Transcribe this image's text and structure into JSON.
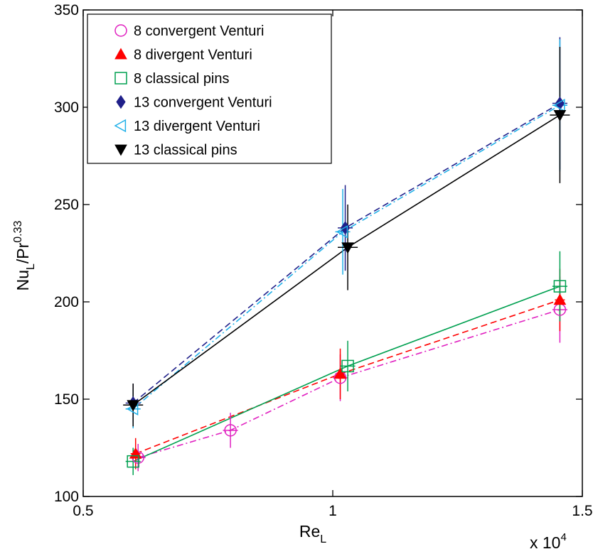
{
  "chart_data": {
    "type": "line",
    "xlabel": "Re",
    "xlabel_sub": "L",
    "ylabel_parts": {
      "main": "Nu",
      "sub": "L",
      "mid": "/Pr",
      "sup": "0.33"
    },
    "x_multiplier_text": "x 10",
    "x_multiplier_exp": "4",
    "xlim": [
      0.5,
      1.5
    ],
    "ylim": [
      100,
      350
    ],
    "xticks": [
      0.5,
      1,
      1.5
    ],
    "yticks": [
      100,
      150,
      200,
      250,
      300,
      350
    ],
    "xtick_labels": [
      "0.5",
      "1",
      "1.5"
    ],
    "ytick_labels": [
      "100",
      "150",
      "200",
      "250",
      "300",
      "350"
    ],
    "grid": false,
    "legend_position": "top-left",
    "series": [
      {
        "name": "8 convergent Venturi",
        "color": "#e020c0",
        "marker": "circle",
        "dash": "dashdot",
        "x": [
          0.61,
          0.795,
          1.015,
          1.455
        ],
        "y": [
          120,
          134,
          161,
          196
        ],
        "yerr": [
          7,
          9,
          12,
          17
        ],
        "xerr": [
          0.015,
          0.015,
          0.015,
          0.015
        ]
      },
      {
        "name": "8 divergent Venturi",
        "color": "#ff0000",
        "marker": "triangle-up",
        "dash": "dashed",
        "x": [
          0.605,
          1.015,
          1.455
        ],
        "y": [
          122,
          163,
          201
        ],
        "yerr": [
          8,
          13,
          16
        ],
        "xerr": [
          0.01,
          0.01,
          0.01
        ]
      },
      {
        "name": "8 classical pins",
        "color": "#00a050",
        "marker": "square",
        "dash": "solid",
        "x": [
          0.6,
          1.03,
          1.455
        ],
        "y": [
          118,
          167,
          208
        ],
        "yerr": [
          7,
          13,
          18
        ],
        "xerr": [
          0.015,
          0.015,
          0.015
        ]
      },
      {
        "name": "13 convergent Venturi",
        "color": "#20208a",
        "marker": "diamond",
        "dash": "dashed",
        "x": [
          0.6,
          1.025,
          1.455
        ],
        "y": [
          148,
          238,
          302
        ],
        "yerr": [
          10,
          22,
          34
        ],
        "xerr": [
          0.015,
          0.015,
          0.015
        ]
      },
      {
        "name": "13 divergent Venturi",
        "color": "#20b0e8",
        "marker": "triangle-left",
        "dash": "dashdot",
        "x": [
          0.6,
          1.02,
          1.455
        ],
        "y": [
          145,
          236,
          301
        ],
        "yerr": [
          10,
          22,
          34
        ],
        "xerr": [
          0.015,
          0.015,
          0.015
        ]
      },
      {
        "name": "13 classical pins",
        "color": "#000000",
        "marker": "triangle-down",
        "dash": "solid",
        "x": [
          0.6,
          1.03,
          1.455
        ],
        "y": [
          147,
          228,
          296
        ],
        "yerr": [
          11,
          22,
          35
        ],
        "xerr": [
          0.02,
          0.02,
          0.02
        ]
      }
    ]
  }
}
